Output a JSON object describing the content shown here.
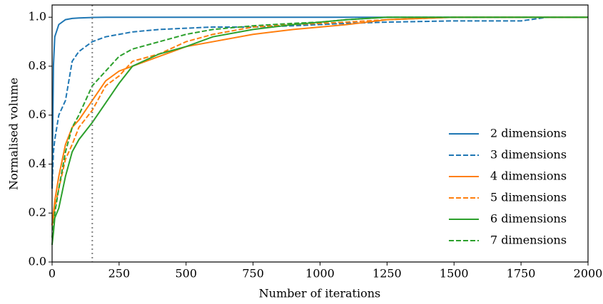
{
  "chart_data": {
    "type": "line",
    "xlabel": "Number of iterations",
    "ylabel": "Normalised volume",
    "x": [
      0,
      5,
      10,
      25,
      50,
      75,
      100,
      150,
      200,
      250,
      300,
      400,
      500,
      600,
      750,
      900,
      1000,
      1100,
      1250,
      1500,
      1750,
      1850,
      2000
    ],
    "series": [
      {
        "name": "2 dimensions",
        "color": "#1f77b4",
        "linestyle": "solid",
        "values": [
          0.3,
          0.8,
          0.92,
          0.97,
          0.99,
          0.995,
          0.997,
          0.999,
          1,
          1,
          1,
          1,
          1,
          1,
          1,
          1,
          1,
          1,
          1,
          1,
          1,
          1,
          1
        ]
      },
      {
        "name": "3 dimensions",
        "color": "#1f77b4",
        "linestyle": "dashed",
        "values": [
          0.3,
          0.45,
          0.5,
          0.6,
          0.66,
          0.82,
          0.86,
          0.9,
          0.92,
          0.93,
          0.94,
          0.95,
          0.955,
          0.96,
          0.96,
          0.965,
          0.97,
          0.975,
          0.98,
          0.985,
          0.985,
          1,
          1
        ]
      },
      {
        "name": "4 dimensions",
        "color": "#ff7f0e",
        "linestyle": "solid",
        "values": [
          0.15,
          0.2,
          0.25,
          0.35,
          0.48,
          0.55,
          0.58,
          0.66,
          0.74,
          0.78,
          0.8,
          0.84,
          0.88,
          0.9,
          0.93,
          0.95,
          0.96,
          0.97,
          0.99,
          1,
          1,
          1,
          1
        ]
      },
      {
        "name": "5 dimensions",
        "color": "#ff7f0e",
        "linestyle": "dashed",
        "values": [
          0.15,
          0.18,
          0.22,
          0.3,
          0.42,
          0.48,
          0.55,
          0.62,
          0.72,
          0.76,
          0.82,
          0.85,
          0.9,
          0.93,
          0.96,
          0.97,
          0.975,
          0.98,
          0.99,
          1,
          1,
          1,
          1
        ]
      },
      {
        "name": "6 dimensions",
        "color": "#2ca02c",
        "linestyle": "solid",
        "values": [
          0.07,
          0.12,
          0.18,
          0.22,
          0.35,
          0.45,
          0.5,
          0.57,
          0.65,
          0.73,
          0.8,
          0.85,
          0.88,
          0.92,
          0.95,
          0.97,
          0.98,
          0.99,
          1,
          1,
          1,
          1,
          1
        ]
      },
      {
        "name": "7 dimensions",
        "color": "#2ca02c",
        "linestyle": "dashed",
        "values": [
          0.1,
          0.15,
          0.2,
          0.3,
          0.45,
          0.55,
          0.6,
          0.72,
          0.78,
          0.84,
          0.87,
          0.9,
          0.93,
          0.95,
          0.965,
          0.975,
          0.98,
          0.99,
          1,
          1,
          1,
          1,
          1
        ]
      }
    ],
    "vline": {
      "x": 150,
      "color": "#808080"
    },
    "xlim": [
      0,
      2000
    ],
    "xticks": [
      0,
      250,
      500,
      750,
      1000,
      1250,
      1500,
      1750,
      2000
    ],
    "ylim": [
      0,
      1.05
    ],
    "yticks": [
      {
        "value": 0,
        "label": "0.0"
      },
      0.2,
      0.4,
      0.6,
      0.8,
      {
        "value": 1,
        "label": "1.0"
      }
    ],
    "legend": "lower right"
  }
}
